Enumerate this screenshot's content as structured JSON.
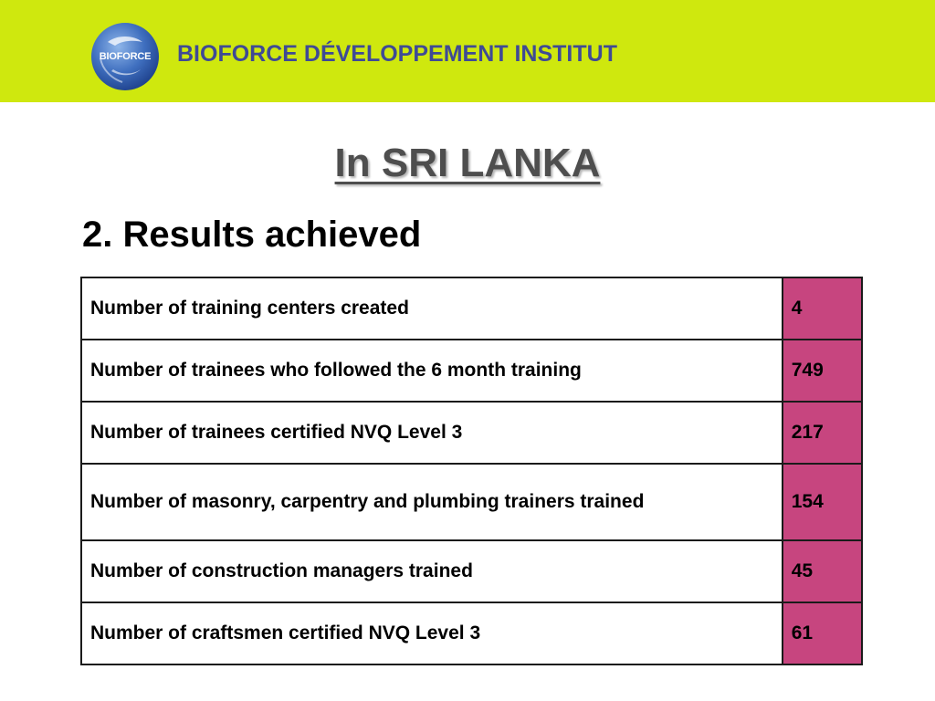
{
  "header": {
    "logo_text": "BIOFORCE",
    "org_name": "BIOFORCE DÉVELOPPEMENT INSTITUT",
    "band_color": "#cfe80e",
    "text_color": "#3f4a95"
  },
  "slide": {
    "title": "In SRI LANKA",
    "section_title": "2. Results achieved"
  },
  "table": {
    "value_cell_color": "#c7457f",
    "rows": [
      {
        "label": "Number of training centers created",
        "value": "4"
      },
      {
        "label": "Number of trainees who followed the 6 month training",
        "value": "749"
      },
      {
        "label": "Number of trainees certified NVQ Level 3",
        "value": "217"
      },
      {
        "label": "Number of masonry, carpentry and plumbing trainers trained",
        "value": "154"
      },
      {
        "label": "Number of construction managers trained",
        "value": "45"
      },
      {
        "label": "Number of craftsmen certified NVQ Level 3",
        "value": "61"
      }
    ]
  }
}
